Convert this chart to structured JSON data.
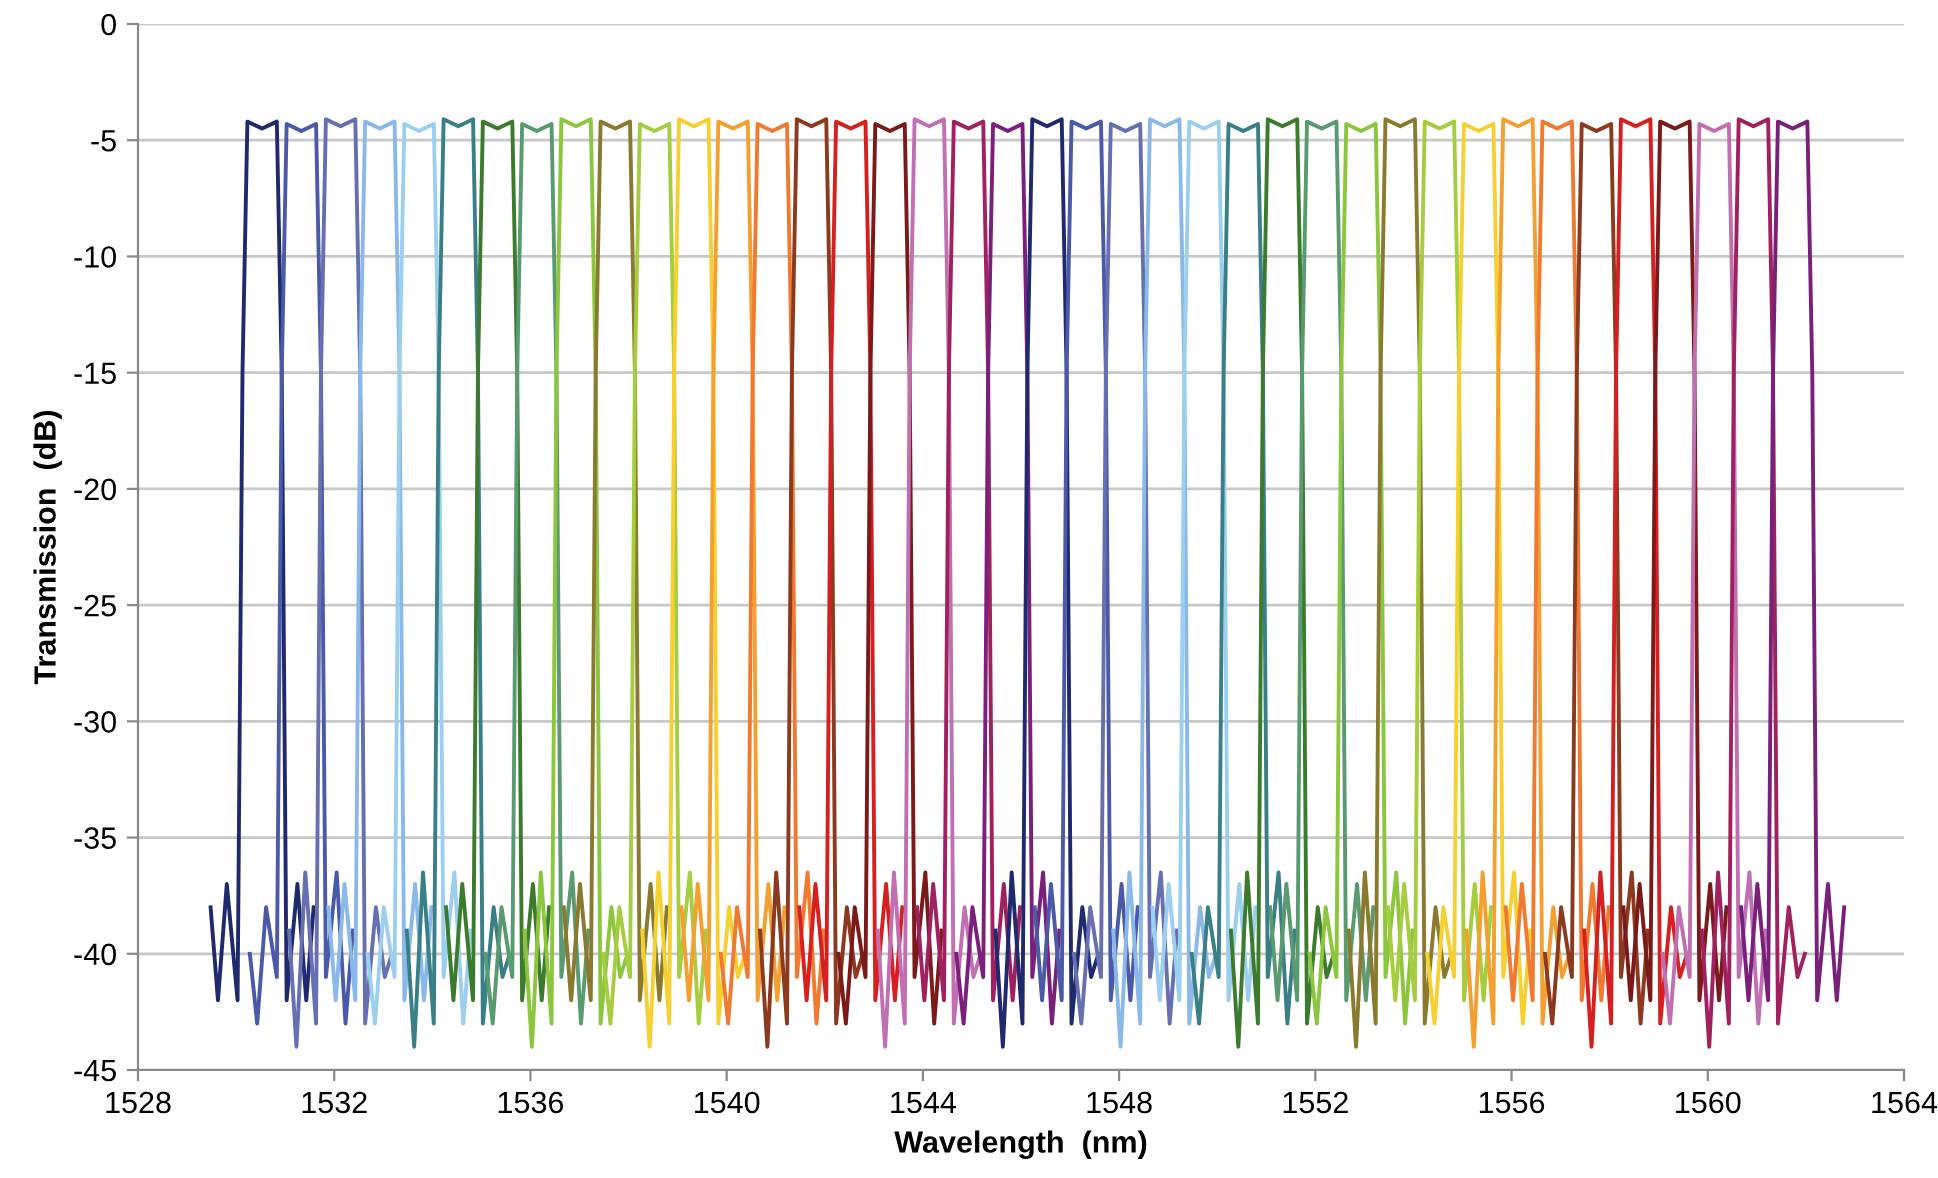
{
  "chart_data": {
    "type": "line",
    "xlabel": "Wavelength  (nm)",
    "ylabel": "Transmission  (dB)",
    "xlim": [
      1528,
      1564
    ],
    "xticks": [
      1528,
      1532,
      1536,
      1540,
      1544,
      1548,
      1552,
      1556,
      1560,
      1564
    ],
    "ylim": [
      -45,
      0
    ],
    "yticks": [
      -45,
      -40,
      -35,
      -30,
      -25,
      -20,
      -15,
      -10,
      -5,
      0
    ],
    "grid": "y",
    "line_style": "solid",
    "marker": "none",
    "series": [
      {
        "color": "#1f2a6e",
        "x": [
          1529.48,
          1529.63,
          1529.81,
          1530.03,
          1530.13,
          1530.23,
          1530.53,
          1530.83,
          1530.93,
          1531.03,
          1531.25,
          1531.43,
          1531.58
        ],
        "values": [
          -38,
          -42,
          -37,
          -42,
          -15,
          -4.2,
          -4.5,
          -4.2,
          -15,
          -42,
          -37,
          -42,
          -38
        ]
      },
      {
        "color": "#4a5aa8",
        "x": [
          1530.28,
          1530.43,
          1530.61,
          1530.83,
          1530.93,
          1531.03,
          1531.33,
          1531.63,
          1531.73,
          1531.83,
          1532.05,
          1532.23,
          1532.38
        ],
        "values": [
          -40,
          -43,
          -38,
          -41,
          -15,
          -4.3,
          -4.6,
          -4.3,
          -15,
          -41,
          -36.5,
          -43,
          -39
        ]
      },
      {
        "color": "#6670b0",
        "x": [
          1531.08,
          1531.23,
          1531.41,
          1531.63,
          1531.73,
          1531.83,
          1532.13,
          1532.43,
          1532.53,
          1532.63,
          1532.85,
          1533.03,
          1533.18
        ],
        "values": [
          -39,
          -44,
          -36.5,
          -43,
          -15,
          -4.1,
          -4.4,
          -4.1,
          -15,
          -43,
          -38,
          -41,
          -40
        ]
      },
      {
        "color": "#8ab8e8",
        "x": [
          1531.88,
          1532.03,
          1532.21,
          1532.43,
          1532.53,
          1532.63,
          1532.93,
          1533.23,
          1533.33,
          1533.43,
          1533.65,
          1533.83,
          1533.98
        ],
        "values": [
          -38,
          -42,
          -37,
          -42,
          -15,
          -4.2,
          -4.5,
          -4.2,
          -15,
          -42,
          -37,
          -42,
          -38
        ]
      },
      {
        "color": "#9ccfef",
        "x": [
          1532.68,
          1532.83,
          1533.01,
          1533.23,
          1533.33,
          1533.43,
          1533.73,
          1534.03,
          1534.13,
          1534.23,
          1534.45,
          1534.63,
          1534.78
        ],
        "values": [
          -40,
          -43,
          -38,
          -41,
          -15,
          -4.3,
          -4.6,
          -4.3,
          -15,
          -41,
          -36.5,
          -43,
          -39
        ]
      },
      {
        "color": "#3a7f86",
        "x": [
          1533.48,
          1533.63,
          1533.81,
          1534.03,
          1534.13,
          1534.23,
          1534.53,
          1534.83,
          1534.93,
          1535.03,
          1535.25,
          1535.43,
          1535.58
        ],
        "values": [
          -39,
          -44,
          -36.5,
          -43,
          -15,
          -4.1,
          -4.4,
          -4.1,
          -15,
          -43,
          -38,
          -41,
          -40
        ]
      },
      {
        "color": "#3c7a2e",
        "x": [
          1534.28,
          1534.43,
          1534.61,
          1534.83,
          1534.93,
          1535.03,
          1535.33,
          1535.63,
          1535.73,
          1535.83,
          1536.05,
          1536.23,
          1536.38
        ],
        "values": [
          -38,
          -42,
          -37,
          -42,
          -15,
          -4.2,
          -4.5,
          -4.2,
          -15,
          -42,
          -37,
          -42,
          -38
        ]
      },
      {
        "color": "#5a9a70",
        "x": [
          1535.08,
          1535.23,
          1535.41,
          1535.63,
          1535.73,
          1535.83,
          1536.13,
          1536.43,
          1536.53,
          1536.63,
          1536.85,
          1537.03,
          1537.18
        ],
        "values": [
          -40,
          -43,
          -38,
          -41,
          -15,
          -4.3,
          -4.6,
          -4.3,
          -15,
          -41,
          -36.5,
          -43,
          -39
        ]
      },
      {
        "color": "#8cc63f",
        "x": [
          1535.88,
          1536.03,
          1536.21,
          1536.43,
          1536.53,
          1536.63,
          1536.93,
          1537.23,
          1537.33,
          1537.43,
          1537.65,
          1537.83,
          1537.98
        ],
        "values": [
          -39,
          -44,
          -36.5,
          -43,
          -15,
          -4.1,
          -4.4,
          -4.1,
          -15,
          -43,
          -38,
          -41,
          -40
        ]
      },
      {
        "color": "#8a7a30",
        "x": [
          1536.68,
          1536.83,
          1537.01,
          1537.23,
          1537.33,
          1537.43,
          1537.73,
          1538.03,
          1538.13,
          1538.23,
          1538.45,
          1538.63,
          1538.78
        ],
        "values": [
          -38,
          -42,
          -37,
          -42,
          -15,
          -4.2,
          -4.5,
          -4.2,
          -15,
          -42,
          -37,
          -42,
          -38
        ]
      },
      {
        "color": "#a6cc40",
        "x": [
          1537.48,
          1537.63,
          1537.81,
          1538.03,
          1538.13,
          1538.23,
          1538.53,
          1538.83,
          1538.93,
          1539.03,
          1539.25,
          1539.43,
          1539.58
        ],
        "values": [
          -40,
          -43,
          -38,
          -41,
          -15,
          -4.3,
          -4.6,
          -4.3,
          -15,
          -41,
          -36.5,
          -43,
          -39
        ]
      },
      {
        "color": "#f6d030",
        "x": [
          1538.28,
          1538.43,
          1538.61,
          1538.83,
          1538.93,
          1539.03,
          1539.33,
          1539.63,
          1539.73,
          1539.83,
          1540.05,
          1540.23,
          1540.38
        ],
        "values": [
          -39,
          -44,
          -36.5,
          -43,
          -15,
          -4.1,
          -4.4,
          -4.1,
          -15,
          -43,
          -38,
          -41,
          -40
        ]
      },
      {
        "color": "#f4a030",
        "x": [
          1539.08,
          1539.23,
          1539.41,
          1539.63,
          1539.73,
          1539.83,
          1540.13,
          1540.43,
          1540.53,
          1540.63,
          1540.85,
          1541.03,
          1541.18
        ],
        "values": [
          -38,
          -42,
          -37,
          -42,
          -15,
          -4.2,
          -4.5,
          -4.2,
          -15,
          -42,
          -37,
          -42,
          -38
        ]
      },
      {
        "color": "#f07a30",
        "x": [
          1539.88,
          1540.03,
          1540.21,
          1540.43,
          1540.53,
          1540.63,
          1540.93,
          1541.23,
          1541.33,
          1541.43,
          1541.65,
          1541.83,
          1541.98
        ],
        "values": [
          -40,
          -43,
          -38,
          -41,
          -15,
          -4.3,
          -4.6,
          -4.3,
          -15,
          -41,
          -36.5,
          -43,
          -39
        ]
      },
      {
        "color": "#8b3a20",
        "x": [
          1540.68,
          1540.83,
          1541.01,
          1541.23,
          1541.33,
          1541.43,
          1541.73,
          1542.03,
          1542.13,
          1542.23,
          1542.45,
          1542.63,
          1542.78
        ],
        "values": [
          -39,
          -44,
          -36.5,
          -43,
          -15,
          -4.1,
          -4.4,
          -4.1,
          -15,
          -43,
          -38,
          -41,
          -40
        ]
      },
      {
        "color": "#d42020",
        "x": [
          1541.48,
          1541.63,
          1541.81,
          1542.03,
          1542.13,
          1542.23,
          1542.53,
          1542.83,
          1542.93,
          1543.03,
          1543.25,
          1543.43,
          1543.58
        ],
        "values": [
          -38,
          -42,
          -37,
          -42,
          -15,
          -4.2,
          -4.5,
          -4.2,
          -15,
          -42,
          -37,
          -42,
          -38
        ]
      },
      {
        "color": "#7a1a1a",
        "x": [
          1542.28,
          1542.43,
          1542.61,
          1542.83,
          1542.93,
          1543.03,
          1543.33,
          1543.63,
          1543.73,
          1543.83,
          1544.05,
          1544.23,
          1544.38
        ],
        "values": [
          -40,
          -43,
          -38,
          -41,
          -15,
          -4.3,
          -4.6,
          -4.3,
          -15,
          -41,
          -36.5,
          -43,
          -39
        ]
      },
      {
        "color": "#c070b0",
        "x": [
          1543.08,
          1543.23,
          1543.41,
          1543.63,
          1543.73,
          1543.83,
          1544.13,
          1544.43,
          1544.53,
          1544.63,
          1544.85,
          1545.03,
          1545.18
        ],
        "values": [
          -39,
          -44,
          -36.5,
          -43,
          -15,
          -4.1,
          -4.4,
          -4.1,
          -15,
          -43,
          -38,
          -41,
          -40
        ]
      },
      {
        "color": "#a02060",
        "x": [
          1543.88,
          1544.03,
          1544.21,
          1544.43,
          1544.53,
          1544.63,
          1544.93,
          1545.23,
          1545.33,
          1545.43,
          1545.65,
          1545.83,
          1545.98
        ],
        "values": [
          -38,
          -42,
          -37,
          -42,
          -15,
          -4.2,
          -4.5,
          -4.2,
          -15,
          -42,
          -37,
          -42,
          -38
        ]
      },
      {
        "color": "#7a207a",
        "x": [
          1544.68,
          1544.83,
          1545.01,
          1545.23,
          1545.33,
          1545.43,
          1545.73,
          1546.03,
          1546.13,
          1546.23,
          1546.45,
          1546.63,
          1546.78
        ],
        "values": [
          -40,
          -43,
          -38,
          -41,
          -15,
          -4.3,
          -4.6,
          -4.3,
          -15,
          -41,
          -36.5,
          -43,
          -39
        ]
      },
      {
        "color": "#1f2a6e",
        "x": [
          1545.48,
          1545.63,
          1545.81,
          1546.03,
          1546.13,
          1546.23,
          1546.53,
          1546.83,
          1546.93,
          1547.03,
          1547.25,
          1547.43,
          1547.58
        ],
        "values": [
          -39,
          -44,
          -36.5,
          -43,
          -15,
          -4.1,
          -4.4,
          -4.1,
          -15,
          -43,
          -38,
          -41,
          -40
        ]
      },
      {
        "color": "#4a5aa8",
        "x": [
          1546.28,
          1546.43,
          1546.61,
          1546.83,
          1546.93,
          1547.03,
          1547.33,
          1547.63,
          1547.73,
          1547.83,
          1548.05,
          1548.23,
          1548.38
        ],
        "values": [
          -38,
          -42,
          -37,
          -42,
          -15,
          -4.2,
          -4.5,
          -4.2,
          -15,
          -42,
          -37,
          -42,
          -38
        ]
      },
      {
        "color": "#6670b0",
        "x": [
          1547.08,
          1547.23,
          1547.41,
          1547.63,
          1547.73,
          1547.83,
          1548.13,
          1548.43,
          1548.53,
          1548.63,
          1548.85,
          1549.03,
          1549.18
        ],
        "values": [
          -40,
          -43,
          -38,
          -41,
          -15,
          -4.3,
          -4.6,
          -4.3,
          -15,
          -41,
          -36.5,
          -43,
          -39
        ]
      },
      {
        "color": "#8ab8e8",
        "x": [
          1547.88,
          1548.03,
          1548.21,
          1548.43,
          1548.53,
          1548.63,
          1548.93,
          1549.23,
          1549.33,
          1549.43,
          1549.65,
          1549.83,
          1549.98
        ],
        "values": [
          -39,
          -44,
          -36.5,
          -43,
          -15,
          -4.1,
          -4.4,
          -4.1,
          -15,
          -43,
          -38,
          -41,
          -40
        ]
      },
      {
        "color": "#9ccfef",
        "x": [
          1548.68,
          1548.83,
          1549.01,
          1549.23,
          1549.33,
          1549.43,
          1549.73,
          1550.03,
          1550.13,
          1550.23,
          1550.45,
          1550.63,
          1550.78
        ],
        "values": [
          -38,
          -42,
          -37,
          -42,
          -15,
          -4.2,
          -4.5,
          -4.2,
          -15,
          -42,
          -37,
          -42,
          -38
        ]
      },
      {
        "color": "#3a7f86",
        "x": [
          1549.48,
          1549.63,
          1549.81,
          1550.03,
          1550.13,
          1550.23,
          1550.53,
          1550.83,
          1550.93,
          1551.03,
          1551.25,
          1551.43,
          1551.58
        ],
        "values": [
          -40,
          -43,
          -38,
          -41,
          -15,
          -4.3,
          -4.6,
          -4.3,
          -15,
          -41,
          -36.5,
          -43,
          -39
        ]
      },
      {
        "color": "#3c7a2e",
        "x": [
          1550.28,
          1550.43,
          1550.61,
          1550.83,
          1550.93,
          1551.03,
          1551.33,
          1551.63,
          1551.73,
          1551.83,
          1552.05,
          1552.23,
          1552.38
        ],
        "values": [
          -39,
          -44,
          -36.5,
          -43,
          -15,
          -4.1,
          -4.4,
          -4.1,
          -15,
          -43,
          -38,
          -41,
          -40
        ]
      },
      {
        "color": "#5a9a70",
        "x": [
          1551.08,
          1551.23,
          1551.41,
          1551.63,
          1551.73,
          1551.83,
          1552.13,
          1552.43,
          1552.53,
          1552.63,
          1552.85,
          1553.03,
          1553.18
        ],
        "values": [
          -38,
          -42,
          -37,
          -42,
          -15,
          -4.2,
          -4.5,
          -4.2,
          -15,
          -42,
          -37,
          -42,
          -38
        ]
      },
      {
        "color": "#8cc63f",
        "x": [
          1551.88,
          1552.03,
          1552.21,
          1552.43,
          1552.53,
          1552.63,
          1552.93,
          1553.23,
          1553.33,
          1553.43,
          1553.65,
          1553.83,
          1553.98
        ],
        "values": [
          -40,
          -43,
          -38,
          -41,
          -15,
          -4.3,
          -4.6,
          -4.3,
          -15,
          -41,
          -36.5,
          -43,
          -39
        ]
      },
      {
        "color": "#8a7a30",
        "x": [
          1552.68,
          1552.83,
          1553.01,
          1553.23,
          1553.33,
          1553.43,
          1553.73,
          1554.03,
          1554.13,
          1554.23,
          1554.45,
          1554.63,
          1554.78
        ],
        "values": [
          -39,
          -44,
          -36.5,
          -43,
          -15,
          -4.1,
          -4.4,
          -4.1,
          -15,
          -43,
          -38,
          -41,
          -40
        ]
      },
      {
        "color": "#a6cc40",
        "x": [
          1553.48,
          1553.63,
          1553.81,
          1554.03,
          1554.13,
          1554.23,
          1554.53,
          1554.83,
          1554.93,
          1555.03,
          1555.25,
          1555.43,
          1555.58
        ],
        "values": [
          -38,
          -42,
          -37,
          -42,
          -15,
          -4.2,
          -4.5,
          -4.2,
          -15,
          -42,
          -37,
          -42,
          -38
        ]
      },
      {
        "color": "#f6d030",
        "x": [
          1554.28,
          1554.43,
          1554.61,
          1554.83,
          1554.93,
          1555.03,
          1555.33,
          1555.63,
          1555.73,
          1555.83,
          1556.05,
          1556.23,
          1556.38
        ],
        "values": [
          -40,
          -43,
          -38,
          -41,
          -15,
          -4.3,
          -4.6,
          -4.3,
          -15,
          -41,
          -36.5,
          -43,
          -39
        ]
      },
      {
        "color": "#f4a030",
        "x": [
          1555.08,
          1555.23,
          1555.41,
          1555.63,
          1555.73,
          1555.83,
          1556.13,
          1556.43,
          1556.53,
          1556.63,
          1556.85,
          1557.03,
          1557.18
        ],
        "values": [
          -39,
          -44,
          -36.5,
          -43,
          -15,
          -4.1,
          -4.4,
          -4.1,
          -15,
          -43,
          -38,
          -41,
          -40
        ]
      },
      {
        "color": "#f07a30",
        "x": [
          1555.88,
          1556.03,
          1556.21,
          1556.43,
          1556.53,
          1556.63,
          1556.93,
          1557.23,
          1557.33,
          1557.43,
          1557.65,
          1557.83,
          1557.98
        ],
        "values": [
          -38,
          -42,
          -37,
          -42,
          -15,
          -4.2,
          -4.5,
          -4.2,
          -15,
          -42,
          -37,
          -42,
          -38
        ]
      },
      {
        "color": "#8b3a20",
        "x": [
          1556.68,
          1556.83,
          1557.01,
          1557.23,
          1557.33,
          1557.43,
          1557.73,
          1558.03,
          1558.13,
          1558.23,
          1558.45,
          1558.63,
          1558.78
        ],
        "values": [
          -40,
          -43,
          -38,
          -41,
          -15,
          -4.3,
          -4.6,
          -4.3,
          -15,
          -41,
          -36.5,
          -43,
          -39
        ]
      },
      {
        "color": "#d42020",
        "x": [
          1557.48,
          1557.63,
          1557.81,
          1558.03,
          1558.13,
          1558.23,
          1558.53,
          1558.83,
          1558.93,
          1559.03,
          1559.25,
          1559.43,
          1559.58
        ],
        "values": [
          -39,
          -44,
          -36.5,
          -43,
          -15,
          -4.1,
          -4.4,
          -4.1,
          -15,
          -43,
          -38,
          -41,
          -40
        ]
      },
      {
        "color": "#7a1a1a",
        "x": [
          1558.28,
          1558.43,
          1558.61,
          1558.83,
          1558.93,
          1559.03,
          1559.33,
          1559.63,
          1559.73,
          1559.83,
          1560.05,
          1560.23,
          1560.38
        ],
        "values": [
          -38,
          -42,
          -37,
          -42,
          -15,
          -4.2,
          -4.5,
          -4.2,
          -15,
          -42,
          -37,
          -42,
          -38
        ]
      },
      {
        "color": "#c070b0",
        "x": [
          1559.08,
          1559.23,
          1559.41,
          1559.63,
          1559.73,
          1559.83,
          1560.13,
          1560.43,
          1560.53,
          1560.63,
          1560.85,
          1561.03,
          1561.18
        ],
        "values": [
          -40,
          -43,
          -38,
          -41,
          -15,
          -4.3,
          -4.6,
          -4.3,
          -15,
          -41,
          -36.5,
          -43,
          -39
        ]
      },
      {
        "color": "#a02060",
        "x": [
          1559.88,
          1560.03,
          1560.21,
          1560.43,
          1560.53,
          1560.63,
          1560.93,
          1561.23,
          1561.33,
          1561.43,
          1561.65,
          1561.83,
          1561.98
        ],
        "values": [
          -39,
          -44,
          -36.5,
          -43,
          -15,
          -4.1,
          -4.4,
          -4.1,
          -15,
          -43,
          -38,
          -41,
          -40
        ]
      },
      {
        "color": "#7a207a",
        "x": [
          1560.68,
          1560.83,
          1561.01,
          1561.23,
          1561.33,
          1561.43,
          1561.73,
          1562.03,
          1562.13,
          1562.23,
          1562.45,
          1562.63,
          1562.78
        ],
        "values": [
          -38,
          -42,
          -37,
          -42,
          -15,
          -4.2,
          -4.5,
          -4.2,
          -15,
          -42,
          -37,
          -42,
          -38
        ]
      }
    ]
  }
}
